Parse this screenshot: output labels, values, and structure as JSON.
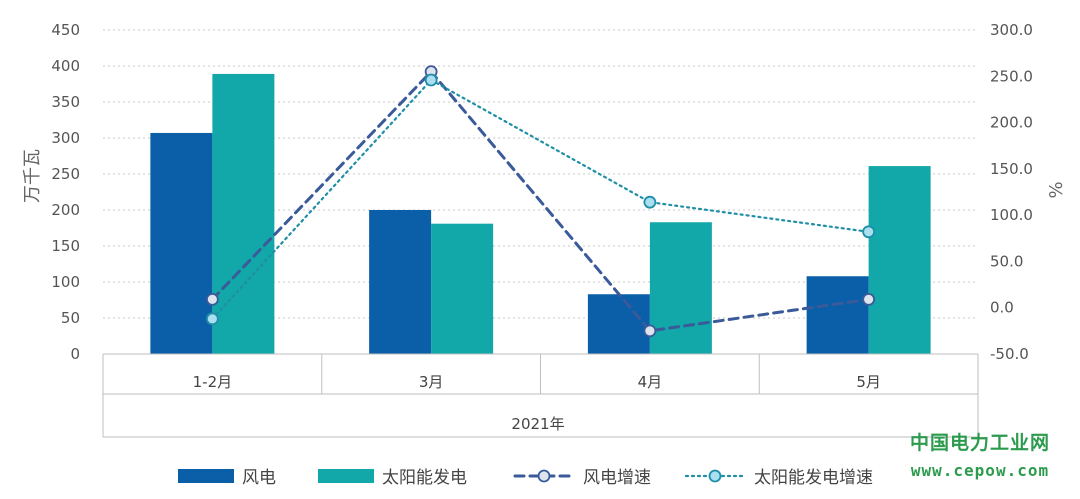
{
  "chart_data": {
    "type": "bar",
    "categories": [
      "1-2月",
      "3月",
      "4月",
      "5月"
    ],
    "group_label": "2021年",
    "ylabel": "万千瓦",
    "y2label": "%",
    "ylim": [
      0,
      450
    ],
    "y2lim": [
      -50,
      300
    ],
    "yticks": [
      "0",
      "50",
      "100",
      "150",
      "200",
      "250",
      "300",
      "350",
      "400",
      "450"
    ],
    "y2ticks": [
      "-50.0",
      "0.0",
      "50.0",
      "100.0",
      "150.0",
      "200.0",
      "250.0",
      "300.0"
    ],
    "grid": true,
    "legend_position": "bottom",
    "series": [
      {
        "name": "风电",
        "type": "bar",
        "axis": "left",
        "color": "#0a5fa8",
        "values": [
          307,
          200,
          83,
          108
        ]
      },
      {
        "name": "太阳能发电",
        "type": "bar",
        "axis": "left",
        "color": "#12a7a8",
        "values": [
          389,
          181,
          183,
          261
        ]
      },
      {
        "name": "风电增速",
        "type": "line",
        "axis": "right",
        "style": "dashed",
        "color": "#3a5a9a",
        "marker_fill": "#dde4ee",
        "values": [
          9,
          255,
          -25,
          9
        ]
      },
      {
        "name": "太阳能发电增速",
        "type": "line",
        "axis": "right",
        "style": "dotted",
        "color": "#1f8fa6",
        "marker_fill": "#a9dff0",
        "values": [
          -12,
          246,
          114,
          82
        ]
      }
    ]
  },
  "watermark": {
    "line1": "中国电力工业网",
    "line2": "www.cepow.com"
  }
}
